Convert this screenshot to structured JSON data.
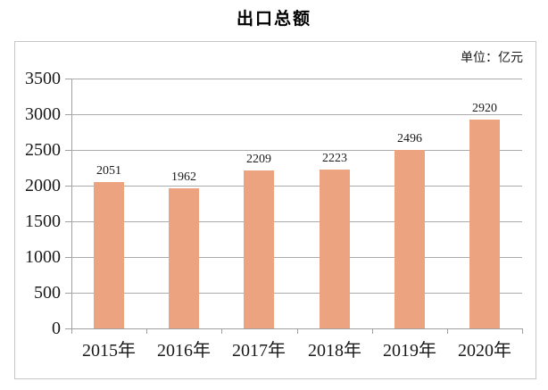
{
  "chart_data": {
    "type": "bar",
    "title": "出口总额",
    "unit_label": "单位：亿元",
    "categories": [
      "2015年",
      "2016年",
      "2017年",
      "2018年",
      "2019年",
      "2020年"
    ],
    "values": [
      2051,
      1962,
      2209,
      2223,
      2496,
      2920
    ],
    "xlabel": "",
    "ylabel": "",
    "ylim": [
      0,
      3500
    ],
    "y_ticks": [
      0,
      500,
      1000,
      1500,
      2000,
      2500,
      3000,
      3500
    ],
    "grid": true,
    "legend": "none",
    "colors": {
      "bar": "#ECA380",
      "gridline": "#ABABAB",
      "axis": "#A0A0A0",
      "frame_border": "#C6C6C6",
      "text": "#1A1A1A",
      "title_text": "#000000",
      "background": "#FFFFFF"
    }
  }
}
